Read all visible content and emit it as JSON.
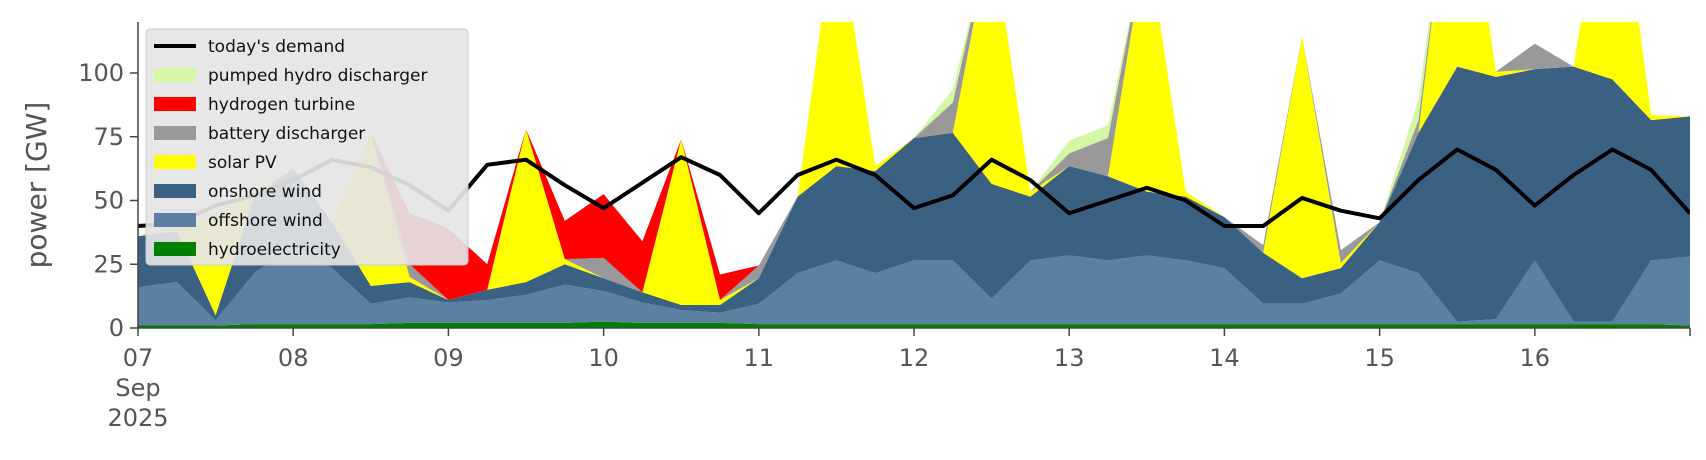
{
  "chart_data": {
    "type": "area",
    "ylabel": "power [GW]",
    "ylim": [
      0,
      120
    ],
    "yticks": [
      0,
      25,
      50,
      75,
      100
    ],
    "xlim": [
      "2025-09-07 00:00",
      "2025-09-17 00:00"
    ],
    "xticks": [
      {
        "x": "2025-09-07 00:00",
        "lines": [
          "07",
          "Sep",
          "2025"
        ]
      },
      {
        "x": "2025-09-08 00:00",
        "lines": [
          "08"
        ]
      },
      {
        "x": "2025-09-09 00:00",
        "lines": [
          "09"
        ]
      },
      {
        "x": "2025-09-10 00:00",
        "lines": [
          "10"
        ]
      },
      {
        "x": "2025-09-11 00:00",
        "lines": [
          "11"
        ]
      },
      {
        "x": "2025-09-12 00:00",
        "lines": [
          "12"
        ]
      },
      {
        "x": "2025-09-13 00:00",
        "lines": [
          "13"
        ]
      },
      {
        "x": "2025-09-14 00:00",
        "lines": [
          "14"
        ]
      },
      {
        "x": "2025-09-15 00:00",
        "lines": [
          "15"
        ]
      },
      {
        "x": "2025-09-16 00:00",
        "lines": [
          "16"
        ]
      }
    ],
    "grid": false,
    "legend_position": "top-left",
    "x": [
      "2025-09-07 00:00",
      "2025-09-07 06:00",
      "2025-09-07 12:00",
      "2025-09-07 18:00",
      "2025-09-08 00:00",
      "2025-09-08 06:00",
      "2025-09-08 12:00",
      "2025-09-08 18:00",
      "2025-09-09 00:00",
      "2025-09-09 06:00",
      "2025-09-09 12:00",
      "2025-09-09 18:00",
      "2025-09-10 00:00",
      "2025-09-10 06:00",
      "2025-09-10 12:00",
      "2025-09-10 18:00",
      "2025-09-11 00:00",
      "2025-09-11 06:00",
      "2025-09-11 12:00",
      "2025-09-11 18:00",
      "2025-09-12 00:00",
      "2025-09-12 06:00",
      "2025-09-12 12:00",
      "2025-09-12 18:00",
      "2025-09-13 00:00",
      "2025-09-13 06:00",
      "2025-09-13 12:00",
      "2025-09-13 18:00",
      "2025-09-14 00:00",
      "2025-09-14 06:00",
      "2025-09-14 12:00",
      "2025-09-14 18:00",
      "2025-09-15 00:00",
      "2025-09-15 06:00",
      "2025-09-15 12:00",
      "2025-09-15 18:00",
      "2025-09-16 00:00",
      "2025-09-16 06:00",
      "2025-09-16 12:00",
      "2025-09-16 18:00",
      "2025-09-17 00:00"
    ],
    "series": [
      {
        "name": "hydroelectricity",
        "color": "#008000",
        "values": [
          1,
          1,
          1,
          1.5,
          1.5,
          1.5,
          1.5,
          2,
          2,
          2,
          2,
          2,
          2.5,
          2,
          2,
          2,
          1.5,
          1.5,
          1.5,
          1.5,
          1.5,
          1.5,
          1.5,
          1.5,
          1.5,
          1.5,
          1.5,
          1.5,
          1.5,
          1.5,
          1.5,
          1.5,
          1.5,
          1.5,
          1.5,
          1.5,
          1.5,
          1.5,
          1.5,
          1.5,
          1
        ]
      },
      {
        "name": "offshore wind",
        "color": "#5b80a2",
        "values": [
          15,
          17,
          2,
          20,
          31,
          22,
          8,
          10,
          8,
          9,
          11,
          15,
          12,
          8,
          5,
          4,
          8,
          20,
          25,
          20,
          25,
          25,
          10,
          25,
          27,
          25,
          27,
          25,
          22,
          8,
          8,
          12,
          25,
          20,
          1,
          2,
          25,
          1,
          1,
          25,
          27
        ]
      },
      {
        "name": "onshore wind",
        "color": "#3a6182",
        "values": [
          20,
          20,
          2,
          30,
          30,
          18,
          7,
          6,
          1,
          4,
          5,
          8,
          5,
          4,
          2,
          3,
          10,
          30,
          37,
          40,
          48,
          50,
          45,
          25,
          35,
          33,
          25,
          25,
          20,
          20,
          10,
          10,
          15,
          55,
          100,
          95,
          75,
          100,
          95,
          55,
          55
        ]
      },
      {
        "name": "solar PV",
        "color": "#ffff00",
        "values": [
          0,
          0,
          40,
          2,
          0,
          0,
          60,
          2,
          0,
          0,
          60,
          2,
          0,
          0,
          65,
          2,
          0,
          0,
          100,
          2,
          0,
          0,
          100,
          2,
          0,
          0,
          100,
          2,
          0,
          0,
          95,
          2,
          0,
          0,
          100,
          2,
          0,
          0,
          100,
          2,
          0
        ]
      },
      {
        "name": "battery discharger",
        "color": "#999999",
        "values": [
          0,
          0,
          0,
          0,
          0,
          0,
          0,
          5,
          0,
          0,
          0,
          0,
          8,
          0,
          0,
          0,
          5,
          0,
          0,
          0,
          0,
          12,
          0,
          0,
          5,
          15,
          0,
          0,
          0,
          3,
          0,
          5,
          0,
          5,
          0,
          0,
          10,
          0,
          0,
          0,
          0
        ]
      },
      {
        "name": "hydrogen turbine",
        "color": "#ff0000",
        "values": [
          0,
          0,
          0,
          0,
          0,
          0,
          0,
          20,
          28,
          10,
          0,
          15,
          25,
          20,
          0,
          10,
          0,
          0,
          0,
          0,
          0,
          0,
          0,
          0,
          0,
          0,
          0,
          0,
          0,
          0,
          0,
          0,
          0,
          0,
          0,
          0,
          0,
          0,
          0,
          0,
          0
        ]
      },
      {
        "name": "pumped hydro discharger",
        "color": "#d4f7a5",
        "values": [
          0,
          5,
          0,
          0,
          0,
          0,
          0,
          0,
          0,
          0,
          0,
          0,
          0,
          0,
          0,
          0,
          0,
          0,
          0,
          0,
          0,
          5,
          0,
          0,
          5,
          5,
          0,
          0,
          0,
          0,
          0,
          0,
          0,
          8,
          0,
          0,
          0,
          0,
          0,
          0,
          0
        ]
      },
      {
        "name": "today's demand",
        "color": "#000000",
        "type": "line",
        "values": [
          40,
          41,
          48,
          52,
          58,
          66,
          63,
          56,
          46,
          64,
          66,
          56,
          47,
          57,
          67,
          60,
          45,
          60,
          66,
          60,
          47,
          52,
          66,
          58,
          45,
          50,
          55,
          50,
          40,
          40,
          51,
          46,
          43,
          58,
          70,
          62,
          48,
          60,
          70,
          62,
          45
        ]
      }
    ],
    "legend": [
      "today's demand",
      "pumped hydro discharger",
      "hydrogen turbine",
      "battery discharger",
      "solar PV",
      "onshore wind",
      "offshore wind",
      "hydroelectricity"
    ]
  }
}
